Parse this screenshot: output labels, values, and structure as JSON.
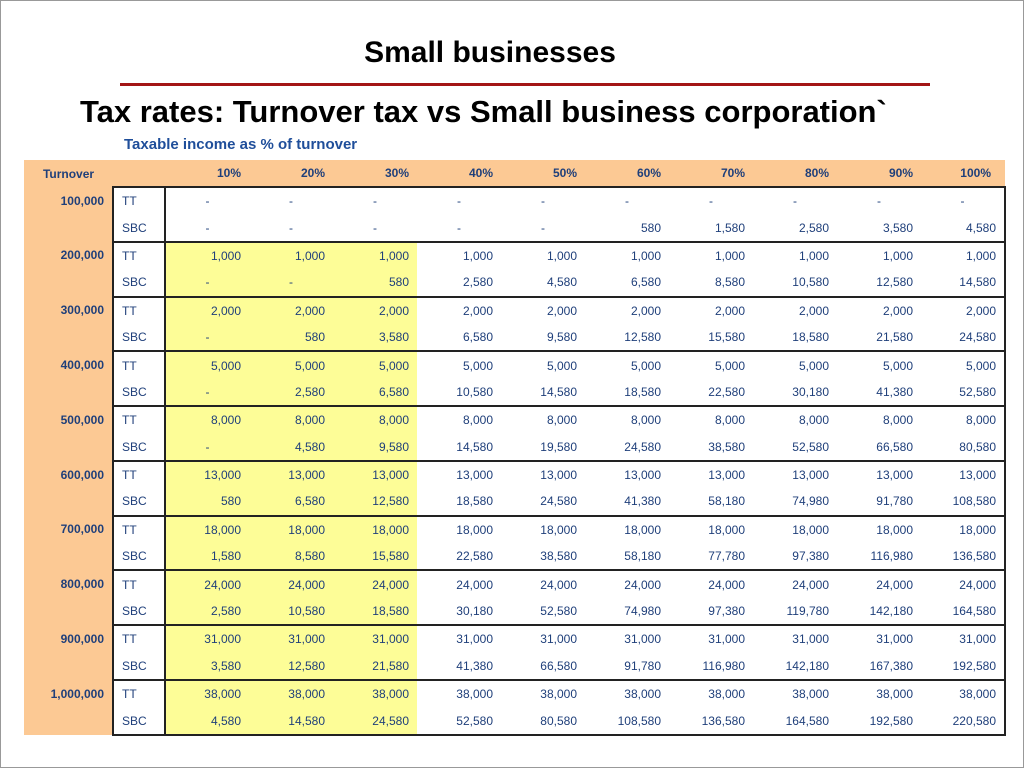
{
  "title": "Small businesses",
  "subtitle": "Tax rates: Turnover tax vs Small business corporation`",
  "caption": "Taxable income as % of turnover",
  "colors": {
    "header_bg": "#fcc994",
    "highlight": "#fdfd97",
    "text": "#1f3f7a",
    "rule": "#a31515"
  },
  "table": {
    "corner_label": "Turnover",
    "columns": [
      "10%",
      "20%",
      "30%",
      "40%",
      "50%",
      "60%",
      "70%",
      "80%",
      "90%",
      "100%"
    ],
    "rows": [
      {
        "turnover": "100,000",
        "tt": [
          "-",
          "-",
          "-",
          "-",
          "-",
          "-",
          "-",
          "-",
          "-",
          "-"
        ],
        "sbc": [
          "-",
          "-",
          "-",
          "-",
          "-",
          "580",
          "1,580",
          "2,580",
          "3,580",
          "4,580"
        ]
      },
      {
        "turnover": "200,000",
        "tt": [
          "1,000",
          "1,000",
          "1,000",
          "1,000",
          "1,000",
          "1,000",
          "1,000",
          "1,000",
          "1,000",
          "1,000"
        ],
        "sbc": [
          "-",
          "-",
          "580",
          "2,580",
          "4,580",
          "6,580",
          "8,580",
          "10,580",
          "12,580",
          "14,580"
        ]
      },
      {
        "turnover": "300,000",
        "tt": [
          "2,000",
          "2,000",
          "2,000",
          "2,000",
          "2,000",
          "2,000",
          "2,000",
          "2,000",
          "2,000",
          "2,000"
        ],
        "sbc": [
          "-",
          "580",
          "3,580",
          "6,580",
          "9,580",
          "12,580",
          "15,580",
          "18,580",
          "21,580",
          "24,580"
        ]
      },
      {
        "turnover": "400,000",
        "tt": [
          "5,000",
          "5,000",
          "5,000",
          "5,000",
          "5,000",
          "5,000",
          "5,000",
          "5,000",
          "5,000",
          "5,000"
        ],
        "sbc": [
          "-",
          "2,580",
          "6,580",
          "10,580",
          "14,580",
          "18,580",
          "22,580",
          "30,180",
          "41,380",
          "52,580"
        ]
      },
      {
        "turnover": "500,000",
        "tt": [
          "8,000",
          "8,000",
          "8,000",
          "8,000",
          "8,000",
          "8,000",
          "8,000",
          "8,000",
          "8,000",
          "8,000"
        ],
        "sbc": [
          "-",
          "4,580",
          "9,580",
          "14,580",
          "19,580",
          "24,580",
          "38,580",
          "52,580",
          "66,580",
          "80,580"
        ]
      },
      {
        "turnover": "600,000",
        "tt": [
          "13,000",
          "13,000",
          "13,000",
          "13,000",
          "13,000",
          "13,000",
          "13,000",
          "13,000",
          "13,000",
          "13,000"
        ],
        "sbc": [
          "580",
          "6,580",
          "12,580",
          "18,580",
          "24,580",
          "41,380",
          "58,180",
          "74,980",
          "91,780",
          "108,580"
        ]
      },
      {
        "turnover": "700,000",
        "tt": [
          "18,000",
          "18,000",
          "18,000",
          "18,000",
          "18,000",
          "18,000",
          "18,000",
          "18,000",
          "18,000",
          "18,000"
        ],
        "sbc": [
          "1,580",
          "8,580",
          "15,580",
          "22,580",
          "38,580",
          "58,180",
          "77,780",
          "97,380",
          "116,980",
          "136,580"
        ]
      },
      {
        "turnover": "800,000",
        "tt": [
          "24,000",
          "24,000",
          "24,000",
          "24,000",
          "24,000",
          "24,000",
          "24,000",
          "24,000",
          "24,000",
          "24,000"
        ],
        "sbc": [
          "2,580",
          "10,580",
          "18,580",
          "30,180",
          "52,580",
          "74,980",
          "97,380",
          "119,780",
          "142,180",
          "164,580"
        ]
      },
      {
        "turnover": "900,000",
        "tt": [
          "31,000",
          "31,000",
          "31,000",
          "31,000",
          "31,000",
          "31,000",
          "31,000",
          "31,000",
          "31,000",
          "31,000"
        ],
        "sbc": [
          "3,580",
          "12,580",
          "21,580",
          "41,380",
          "66,580",
          "91,780",
          "116,980",
          "142,180",
          "167,380",
          "192,580"
        ]
      },
      {
        "turnover": "1,000,000",
        "tt": [
          "38,000",
          "38,000",
          "38,000",
          "38,000",
          "38,000",
          "38,000",
          "38,000",
          "38,000",
          "38,000",
          "38,000"
        ],
        "sbc": [
          "4,580",
          "14,580",
          "24,580",
          "52,580",
          "80,580",
          "108,580",
          "136,580",
          "164,580",
          "192,580",
          "220,580"
        ]
      }
    ],
    "tt_label": "TT",
    "sbc_label": "SBC"
  }
}
